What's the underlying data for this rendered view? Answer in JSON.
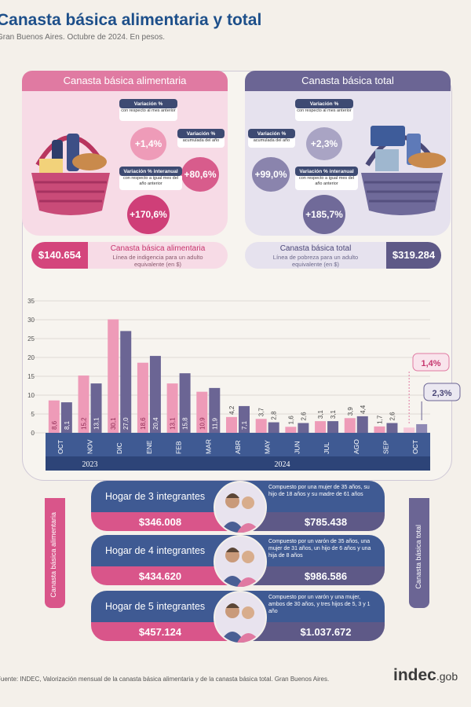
{
  "header": {
    "title": "Canasta básica alimentaria y total",
    "subtitle": "Gran Buenos Aires. Octubre de 2024. En pesos."
  },
  "cba": {
    "title": "Canasta básica alimentaria",
    "var_label": "Variación %",
    "var_sub": "con respecto al mes anterior",
    "var_value": "+1,4%",
    "acum_label": "Variación %",
    "acum_sub": "acumulada del año",
    "acum_value": "+80,6%",
    "inter_label": "Variación % interanual",
    "inter_sub": "con respecto a igual mes del año anterior",
    "inter_value": "+170,6%",
    "price": "$140.654",
    "desc_title": "Canasta básica alimentaria",
    "desc_sub": "Línea de indigencia para un adulto equivalente (en $)"
  },
  "cbt": {
    "title": "Canasta básica total",
    "var_label": "Variación %",
    "var_sub": "con respecto al mes anterior",
    "var_value": "+2,3%",
    "acum_label": "Variación %",
    "acum_sub": "acumulada del año",
    "acum_value": "+99,0%",
    "inter_label": "Variación % interanual",
    "inter_sub": "con respecto a igual mes del año anterior",
    "inter_value": "+185,7%",
    "price": "$319.284",
    "desc_title": "Canasta básica total",
    "desc_sub": "Línea de pobreza para un adulto equivalente (en $)"
  },
  "colors": {
    "pink": "#e07aa2",
    "pink_light": "#f1b3c9",
    "purple": "#6b6594",
    "purple_light": "#9f99be",
    "navy": "#3f5a93",
    "navy_dark": "#2d4478"
  },
  "chart_data": {
    "type": "bar",
    "categories": [
      "OCT",
      "NOV",
      "DIC",
      "ENE",
      "FEB",
      "MAR",
      "ABR",
      "MAY",
      "JUN",
      "JUL",
      "AGO",
      "SEP",
      "OCT"
    ],
    "years": [
      {
        "label": "2023",
        "from": 0,
        "to": 2
      },
      {
        "label": "2024",
        "from": 3,
        "to": 12
      }
    ],
    "series": [
      {
        "name": "Canasta básica alimentaria",
        "values": [
          8.6,
          15.2,
          30.1,
          18.6,
          13.1,
          10.9,
          4.2,
          3.7,
          1.6,
          3.1,
          3.9,
          1.7,
          1.4
        ]
      },
      {
        "name": "Canasta básica total",
        "values": [
          8.1,
          13.1,
          27.0,
          20.4,
          15.8,
          11.9,
          7.1,
          2.8,
          2.6,
          3.1,
          4.4,
          2.6,
          2.3
        ]
      }
    ],
    "value_labels": [
      [
        "8,6",
        "15,2",
        "30,1",
        "18,6",
        "13,1",
        "10,9",
        "4,2",
        "3,7",
        "1,6",
        "3,1",
        "3,9",
        "1,7",
        ""
      ],
      [
        "8,1",
        "13,1",
        "27,0",
        "20,4",
        "15,8",
        "11,9",
        "7,1",
        "2,8",
        "2,6",
        "3,1",
        "4,4",
        "2,6",
        ""
      ]
    ],
    "callouts": [
      "1,4%",
      "2,3%"
    ],
    "yticks": [
      0,
      5,
      10,
      15,
      20,
      25,
      30,
      35
    ],
    "ylim": [
      0,
      35
    ]
  },
  "households": [
    {
      "title": "Hogar de 3 integrantes",
      "desc": "Compuesto por una mujer de 35 años, su hijo de 18 años y su madre de 61 años",
      "cba": "$346.008",
      "cbt": "$785.438"
    },
    {
      "title": "Hogar de 4 integrantes",
      "desc": "Compuesto por un varón de 35 años, una mujer de 31 años, un hijo de 6 años y una hija de 8 años",
      "cba": "$434.620",
      "cbt": "$986.586"
    },
    {
      "title": "Hogar de 5 integrantes",
      "desc": "Compuesto por un varón y una mujer, ambos de 30 años, y tres hijos de 5, 3 y 1 año",
      "cba": "$457.124",
      "cbt": "$1.037.672"
    }
  ],
  "sidebars": {
    "left": "Canasta básica alimentaria",
    "right": "Canasta básica total"
  },
  "footer": {
    "source": "Fuente: INDEC, Valorización mensual de la canasta básica alimentaria y de la canasta básica total. Gran Buenos Aires.",
    "logo_main": "indec",
    "logo_suffix": ".gob"
  }
}
